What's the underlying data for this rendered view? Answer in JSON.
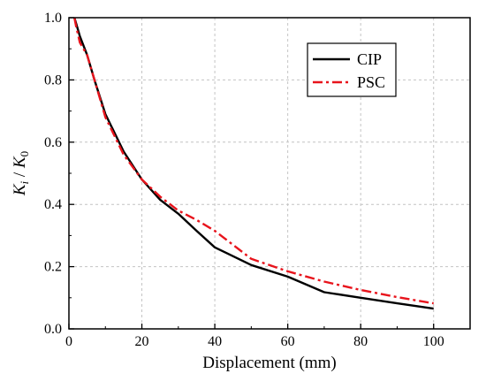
{
  "chart_data": {
    "type": "line",
    "xlabel": "Displacement (mm)",
    "ylabel": {
      "k": "K",
      "i": "i",
      "sep": " / ",
      "k0": "K",
      "zero": "0"
    },
    "xlim": [
      0,
      110
    ],
    "ylim": [
      0,
      1.0
    ],
    "xticks": [
      "0",
      "20",
      "40",
      "60",
      "80",
      "100"
    ],
    "yticks": [
      "0.0",
      "0.2",
      "0.4",
      "0.6",
      "0.8",
      "1.0"
    ],
    "grid": true,
    "legend_position": "top-right",
    "series": [
      {
        "name": "CIP",
        "color": "#000000",
        "line_style": "solid",
        "x": [
          1.5,
          2,
          3,
          5,
          7,
          10,
          15,
          20,
          25,
          30,
          35,
          40,
          50,
          60,
          70,
          80,
          90,
          100
        ],
        "y": [
          1.0,
          0.98,
          0.94,
          0.88,
          0.8,
          0.69,
          0.57,
          0.48,
          0.415,
          0.37,
          0.315,
          0.262,
          0.205,
          0.168,
          0.118,
          0.1,
          0.082,
          0.065
        ]
      },
      {
        "name": "PSC",
        "color": "#e8141c",
        "line_style": "dashdot",
        "x": [
          1.5,
          2,
          3,
          5,
          7,
          10,
          15,
          20,
          25,
          30,
          35,
          40,
          50,
          60,
          70,
          80,
          90,
          100
        ],
        "y": [
          1.0,
          0.97,
          0.92,
          0.88,
          0.8,
          0.68,
          0.56,
          0.48,
          0.425,
          0.38,
          0.35,
          0.315,
          0.225,
          0.185,
          0.152,
          0.125,
          0.102,
          0.082
        ]
      }
    ]
  }
}
